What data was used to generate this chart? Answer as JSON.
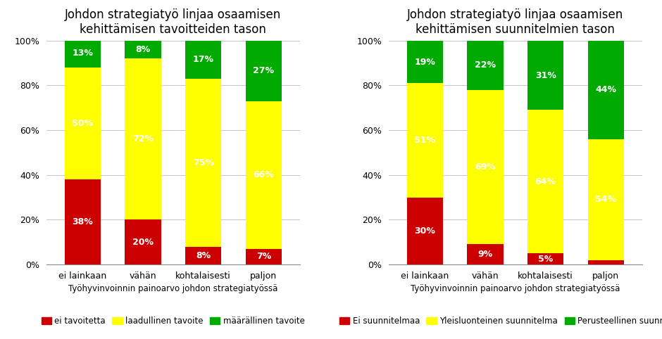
{
  "chart1": {
    "title": "Johdon strategiatyö linjaa osaamisen\nkehittämisen tavoitteiden tason",
    "categories": [
      "ei lainkaan",
      "vähän",
      "kohtalaisesti",
      "paljon"
    ],
    "series": [
      {
        "label": "ei tavoitetta",
        "color": "#CC0000",
        "values": [
          38,
          20,
          8,
          7
        ]
      },
      {
        "label": "laadullinen tavoite",
        "color": "#FFFF00",
        "values": [
          50,
          72,
          75,
          66
        ]
      },
      {
        "label": "määrällinen tavoite",
        "color": "#00AA00",
        "values": [
          13,
          8,
          17,
          27
        ]
      }
    ],
    "xlabel": "Työhyvinvoinnin painoarvo johdon strategiatyössä",
    "ylabel_ticks": [
      0,
      20,
      40,
      60,
      80,
      100
    ]
  },
  "chart2": {
    "title": "Johdon strategiatyö linjaa osaamisen\nkehittämisen suunnitelmien tason",
    "categories": [
      "ei lainkaan",
      "vähän",
      "kohtalaisesti",
      "paljon"
    ],
    "series": [
      {
        "label": "Ei suunnitelmaa",
        "color": "#CC0000",
        "values": [
          30,
          9,
          5,
          2
        ]
      },
      {
        "label": "Yleisluonteinen suunnitelma",
        "color": "#FFFF00",
        "values": [
          51,
          69,
          64,
          54
        ]
      },
      {
        "label": "Perusteellinen suunnitelma",
        "color": "#00AA00",
        "values": [
          19,
          22,
          31,
          44
        ]
      }
    ],
    "xlabel": "Työhyvinvoinnin painoarvo johdon strategiatyössä",
    "ylabel_ticks": [
      0,
      20,
      40,
      60,
      80,
      100
    ]
  },
  "bg_color": "#FFFFFF",
  "bar_width": 0.6,
  "text_color_light": "#FFFFFF",
  "title_fontsize": 12,
  "tick_fontsize": 9,
  "label_fontsize": 9,
  "legend_fontsize": 8.5,
  "grid_color": "#BBBBBB",
  "label_min_pct": 4
}
